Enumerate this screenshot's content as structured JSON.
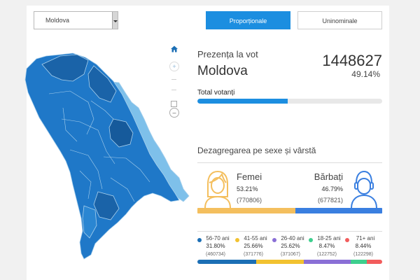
{
  "filters": {
    "region_value": "Moldova",
    "tabs": [
      {
        "label": "Proporționale",
        "active": true
      },
      {
        "label": "Uninominale",
        "active": false
      }
    ]
  },
  "map": {
    "controls": [
      "home-icon",
      "zoom-in-icon",
      "zoom-out-icon"
    ],
    "colors": {
      "dark": "#1a63a8",
      "medium": "#1f78c8",
      "light": "#7ec0ea",
      "border": "#a9d0ec"
    }
  },
  "presence": {
    "label": "Prezența la vot",
    "region": "Moldova",
    "count": "1448627",
    "percent": "49.14%",
    "total_label": "Total votanți",
    "total_fill": 0.49
  },
  "gender": {
    "title": "Dezagregarea pe sexe și vârstă",
    "female": {
      "name": "Femei",
      "percent": "53.21%",
      "count": "(770806)",
      "share": 0.5321,
      "color": "#f4bf5e"
    },
    "male": {
      "name": "Bărbați",
      "percent": "46.79%",
      "count": "(677821)",
      "share": 0.4679,
      "color": "#3a7fe0"
    }
  },
  "age_groups": [
    {
      "label": "56-70 ani",
      "percent": "31.80%",
      "count": "(460734)",
      "share": 0.318,
      "color": "#1c6fb5"
    },
    {
      "label": "41-55 ani",
      "percent": "25.66%",
      "count": "(371776)",
      "share": 0.2566,
      "color": "#f2c230"
    },
    {
      "label": "26-40 ani",
      "percent": "25.62%",
      "count": "(371067)",
      "share": 0.2562,
      "color": "#8a6fd6"
    },
    {
      "label": "18-25 ani",
      "percent": "8.47%",
      "count": "(122752)",
      "share": 0.0847,
      "color": "#3ecf8e"
    },
    {
      "label": "71+ ani",
      "percent": "8.44%",
      "count": "(122298)",
      "share": 0.0844,
      "color": "#f25c5c"
    }
  ]
}
